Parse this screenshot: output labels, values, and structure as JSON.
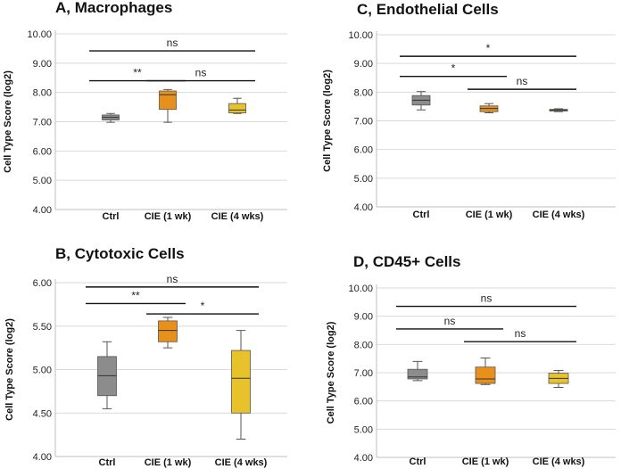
{
  "chart_data": [
    {
      "id": "A",
      "type": "box",
      "title": "A, Macrophages",
      "ylabel": "Cell Type Score (log2)",
      "ylim": [
        4,
        10
      ],
      "yticks": [
        "4.00",
        "5.00",
        "6.00",
        "7.00",
        "8.00",
        "9.00",
        "10.00"
      ],
      "categories": [
        "Ctrl",
        "CIE (1 wk)",
        "CIE (4 wks)"
      ],
      "colors": [
        "#8c8c8c",
        "#e8901c",
        "#e8c22a"
      ],
      "boxes": [
        {
          "category": "Ctrl",
          "min": 6.98,
          "q1": 7.06,
          "median": 7.15,
          "q3": 7.23,
          "max": 7.28
        },
        {
          "category": "CIE (1 wk)",
          "min": 6.98,
          "q1": 7.42,
          "median": 7.92,
          "q3": 8.05,
          "max": 8.1
        },
        {
          "category": "CIE (4 wks)",
          "min": 7.28,
          "q1": 7.3,
          "median": 7.4,
          "q3": 7.62,
          "max": 7.8
        }
      ],
      "comparisons": [
        {
          "from": "Ctrl",
          "to": "CIE (1 wk)",
          "label": "**",
          "y": 8.4
        },
        {
          "from": "CIE (1 wk)",
          "to": "CIE (4 wks)",
          "label": "ns",
          "y": 8.4
        },
        {
          "from": "Ctrl",
          "to": "CIE (4 wks)",
          "label": "ns",
          "y": 9.42
        }
      ]
    },
    {
      "id": "C",
      "type": "box",
      "title": "C, Endothelial Cells",
      "ylabel": "Cell Type Score (log2)",
      "ylim": [
        4,
        10
      ],
      "yticks": [
        "4.00",
        "5.00",
        "6.00",
        "7.00",
        "8.00",
        "9.00",
        "10.00"
      ],
      "categories": [
        "Ctrl",
        "CIE (1 wk)",
        "CIE (4 wks)"
      ],
      "colors": [
        "#8c8c8c",
        "#e8901c",
        "#e8c22a"
      ],
      "boxes": [
        {
          "category": "Ctrl",
          "min": 7.38,
          "q1": 7.55,
          "median": 7.72,
          "q3": 7.88,
          "max": 8.02
        },
        {
          "category": "CIE (1 wk)",
          "min": 7.28,
          "q1": 7.32,
          "median": 7.43,
          "q3": 7.52,
          "max": 7.6
        },
        {
          "category": "CIE (4 wks)",
          "min": 7.32,
          "q1": 7.34,
          "median": 7.37,
          "q3": 7.4,
          "max": 7.42
        }
      ],
      "comparisons": [
        {
          "from": "Ctrl",
          "to": "CIE (1 wk)",
          "label": "*",
          "y": 8.55
        },
        {
          "from": "CIE (1 wk)",
          "to": "CIE (4 wks)",
          "label": "ns",
          "y": 8.1
        },
        {
          "from": "Ctrl",
          "to": "CIE (4 wks)",
          "label": "*",
          "y": 9.25
        }
      ]
    },
    {
      "id": "B",
      "type": "box",
      "title": "B, Cytotoxic Cells",
      "ylabel": "Cell Type Score (log2)",
      "ylim": [
        4,
        6
      ],
      "yticks": [
        "4.00",
        "4.50",
        "5.00",
        "5.50",
        "6.00"
      ],
      "categories": [
        "Ctrl",
        "CIE (1 wk)",
        "CIE (4 wks)"
      ],
      "colors": [
        "#8c8c8c",
        "#e8901c",
        "#e8c22a"
      ],
      "boxes": [
        {
          "category": "Ctrl",
          "min": 4.55,
          "q1": 4.7,
          "median": 4.93,
          "q3": 5.15,
          "max": 5.32
        },
        {
          "category": "CIE (1 wk)",
          "min": 5.25,
          "q1": 5.32,
          "median": 5.45,
          "q3": 5.56,
          "max": 5.6
        },
        {
          "category": "CIE (4 wks)",
          "min": 4.2,
          "q1": 4.5,
          "median": 4.9,
          "q3": 5.22,
          "max": 5.45
        }
      ],
      "comparisons": [
        {
          "from": "Ctrl",
          "to": "CIE (1 wk)",
          "label": "**",
          "y": 5.76
        },
        {
          "from": "CIE (1 wk)",
          "to": "CIE (4 wks)",
          "label": "*",
          "y": 5.64
        },
        {
          "from": "Ctrl",
          "to": "CIE (4 wks)",
          "label": "ns",
          "y": 5.95
        }
      ]
    },
    {
      "id": "D",
      "type": "box",
      "title": "D, CD45+ Cells",
      "ylabel": "Cell Type Score (log2)",
      "ylim": [
        4,
        10
      ],
      "yticks": [
        "4.00",
        "5.00",
        "6.00",
        "7.00",
        "8.00",
        "9.00",
        "10.00"
      ],
      "categories": [
        "Ctrl",
        "CIE (1 wk)",
        "CIE (4 wks)"
      ],
      "colors": [
        "#8c8c8c",
        "#e8901c",
        "#e8c22a"
      ],
      "boxes": [
        {
          "category": "Ctrl",
          "min": 6.72,
          "q1": 6.78,
          "median": 6.85,
          "q3": 7.12,
          "max": 7.4
        },
        {
          "category": "CIE (1 wk)",
          "min": 6.58,
          "q1": 6.62,
          "median": 6.78,
          "q3": 7.2,
          "max": 7.52
        },
        {
          "category": "CIE (4 wks)",
          "min": 6.48,
          "q1": 6.62,
          "median": 6.8,
          "q3": 6.98,
          "max": 7.08
        }
      ],
      "comparisons": [
        {
          "from": "Ctrl",
          "to": "CIE (1 wk)",
          "label": "ns",
          "y": 8.55
        },
        {
          "from": "CIE (1 wk)",
          "to": "CIE (4 wks)",
          "label": "ns",
          "y": 8.1
        },
        {
          "from": "Ctrl",
          "to": "CIE (4 wks)",
          "label": "ns",
          "y": 9.35
        }
      ]
    }
  ]
}
